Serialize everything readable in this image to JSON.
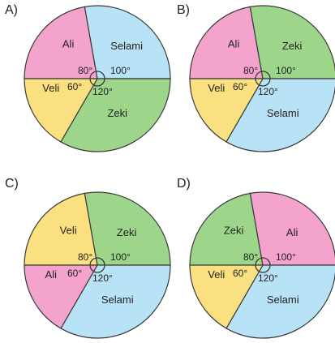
{
  "colors": {
    "pink": "#f4a3cd",
    "blue": "#b8e2f6",
    "yellow": "#fbe081",
    "green": "#9dd68a",
    "stroke": "#3a3a3a"
  },
  "chart_data": [
    {
      "type": "pie",
      "option": "A)",
      "slices": [
        {
          "label": "Ali",
          "angle": 80,
          "color": "pink"
        },
        {
          "label": "Selami",
          "angle": 100,
          "color": "blue"
        },
        {
          "label": "Zeki",
          "angle": 120,
          "color": "green"
        },
        {
          "label": "Veli",
          "angle": 60,
          "color": "yellow"
        }
      ],
      "angle_labels": [
        "80°",
        "100°",
        "120°",
        "60°"
      ]
    },
    {
      "type": "pie",
      "option": "B)",
      "slices": [
        {
          "label": "Ali",
          "angle": 80,
          "color": "pink"
        },
        {
          "label": "Zeki",
          "angle": 100,
          "color": "green"
        },
        {
          "label": "Selami",
          "angle": 120,
          "color": "blue"
        },
        {
          "label": "Veli",
          "angle": 60,
          "color": "yellow"
        }
      ],
      "angle_labels": [
        "80°",
        "100°",
        "120°",
        "60°"
      ]
    },
    {
      "type": "pie",
      "option": "C)",
      "slices": [
        {
          "label": "Veli",
          "angle": 80,
          "color": "yellow"
        },
        {
          "label": "Zeki",
          "angle": 100,
          "color": "green"
        },
        {
          "label": "Selami",
          "angle": 120,
          "color": "blue"
        },
        {
          "label": "Ali",
          "angle": 60,
          "color": "pink"
        }
      ],
      "angle_labels": [
        "80°",
        "100°",
        "120°",
        "60°"
      ]
    },
    {
      "type": "pie",
      "option": "D)",
      "slices": [
        {
          "label": "Zeki",
          "angle": 80,
          "color": "green"
        },
        {
          "label": "Ali",
          "angle": 100,
          "color": "pink"
        },
        {
          "label": "Selami",
          "angle": 120,
          "color": "blue"
        },
        {
          "label": "Veli",
          "angle": 60,
          "color": "yellow"
        }
      ],
      "angle_labels": [
        "80°",
        "100°",
        "120°",
        "60°"
      ]
    }
  ]
}
